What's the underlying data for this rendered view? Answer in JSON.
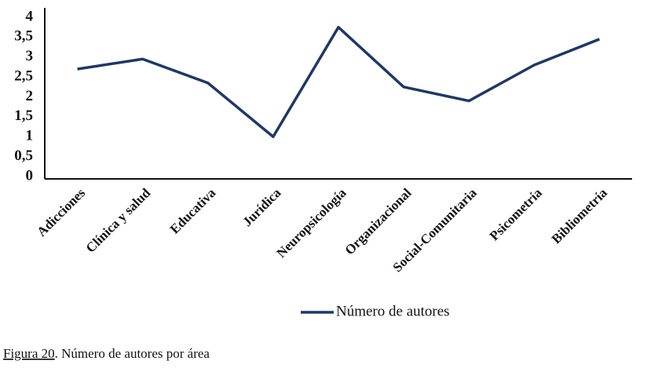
{
  "chart_data": {
    "type": "line",
    "categories": [
      "Adicciones",
      "Clínica y salud",
      "Educativa",
      "Jurídica",
      "Neuropsicología",
      "Organizacional",
      "Social-Comunitaria",
      "Psicometría",
      "Bibliometría"
    ],
    "series": [
      {
        "name": "Número de autores",
        "color": "#1f3864",
        "values": [
          2.7,
          2.95,
          2.35,
          1.0,
          3.75,
          2.25,
          1.9,
          2.8,
          3.45
        ]
      }
    ],
    "ylim": [
      0,
      4
    ],
    "yticks": [
      0,
      {
        "value": 0.5,
        "label": "0,5"
      },
      1,
      {
        "value": 1.5,
        "label": "1,5"
      },
      2,
      {
        "value": 2.5,
        "label": "2,5"
      },
      3,
      {
        "value": 3.5,
        "label": "3,5"
      },
      4
    ],
    "grid": false,
    "legend": "bottom",
    "caption_label": "Figura 20",
    "caption": ". Número de autores por área"
  }
}
